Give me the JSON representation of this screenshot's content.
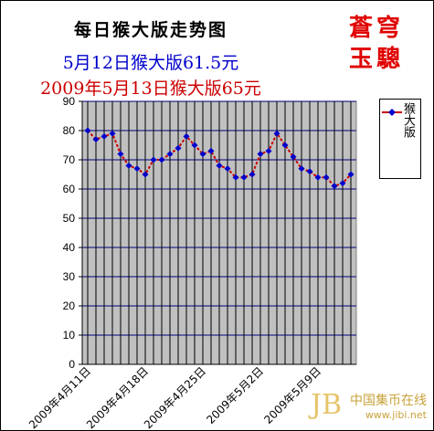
{
  "chart_data": {
    "type": "line",
    "title": "每日猴大版走势图",
    "subtitles": [
      "5月12日猴大版61.5元",
      "2009年5月13日猴大版65元"
    ],
    "series": [
      {
        "name": "猴大版",
        "color": "#cc0000",
        "marker_color": "#0000cc",
        "values": [
          80,
          77,
          78,
          79,
          72,
          68,
          67,
          65,
          70,
          70,
          72,
          74,
          78,
          75,
          72,
          73,
          68,
          67,
          64,
          64,
          65,
          72,
          73,
          79,
          75,
          71,
          67,
          66,
          64,
          64,
          61,
          62,
          65
        ]
      }
    ],
    "x_tick_labels": [
      "2009年4月11日",
      "2009年4月18日",
      "2009年4月25日",
      "2009年5月2日",
      "2009年5月9日"
    ],
    "x_tick_indices": [
      0,
      7,
      14,
      21,
      28
    ],
    "ylim": [
      0,
      90
    ],
    "yticks": [
      0,
      10,
      20,
      30,
      40,
      50,
      60,
      70,
      80,
      90
    ],
    "grid": true,
    "legend_position": "right",
    "plot_background": "#c0c0c0"
  },
  "brand": {
    "line1": "蒼穹",
    "line2": "玉驄"
  },
  "watermark": {
    "text": "中国集币在线",
    "url": "www.jibi.net",
    "logo": "JB"
  }
}
